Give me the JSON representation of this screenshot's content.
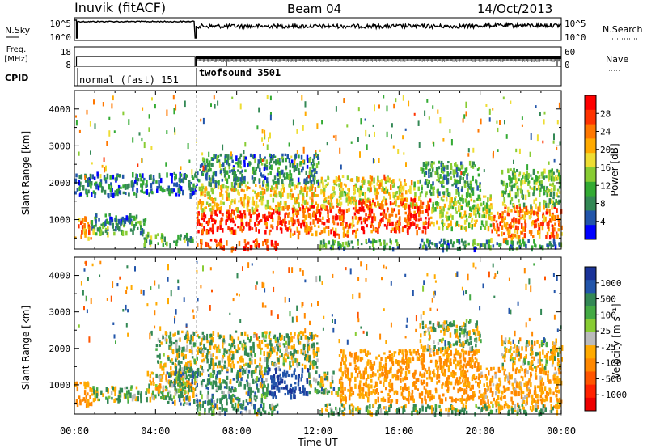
{
  "header": {
    "station": "Inuvik (fitACF)",
    "beam": "Beam 04",
    "date": "14/Oct/2013"
  },
  "left_labels": {
    "nsky": "N.Sky",
    "freq_top": "Freq.",
    "freq_unit": "[MHz]",
    "cpid": "CPID"
  },
  "right_labels": {
    "nsearch": "N.Search",
    "nave": "Nave"
  },
  "strip_axes": {
    "noise_left": [
      "10^5",
      "10^0"
    ],
    "noise_right": [
      "10^5",
      "10^0"
    ],
    "freq_left": [
      "18",
      "8"
    ],
    "nave_right": [
      "60",
      "0"
    ]
  },
  "cpid_modes": [
    {
      "label": "normal (fast) 151"
    },
    {
      "label": "twofsound 3501"
    }
  ],
  "power_colorbar": {
    "label": "Power [dB]",
    "ticks": [
      "28",
      "24",
      "20",
      "16",
      "12",
      "8",
      "4"
    ],
    "colors": [
      "#ff0000",
      "#ff3300",
      "#ff7700",
      "#ffaa00",
      "#eedd33",
      "#88cc33",
      "#33aa33",
      "#338855",
      "#2255aa",
      "#0000ff"
    ]
  },
  "velocity_colorbar": {
    "label": "Velocity [m s⁻¹]",
    "ticks": [
      "1000",
      "500",
      "100",
      "25",
      "-25",
      "-100",
      "-500",
      "-1000"
    ],
    "colors": [
      "#1a3399",
      "#2255aa",
      "#338855",
      "#44aa44",
      "#88cc33",
      "#bbbbbb",
      "#ffaa00",
      "#ff8800",
      "#ff5500",
      "#ff2200",
      "#ee0000"
    ]
  },
  "chart_data": [
    {
      "type": "heatmap",
      "parameter": "power",
      "x_range": [
        "00:00",
        "00:00"
      ],
      "x_ticks": [
        "00:00",
        "04:00",
        "08:00",
        "12:00",
        "16:00",
        "20:00",
        "00:00"
      ],
      "xlabel": "Time UT",
      "ylabel": "Slant Range [km]",
      "y_ticks": [
        1000,
        2000,
        3000,
        4000
      ],
      "ylim": [
        200,
        4500
      ],
      "zlim": [
        0,
        30
      ],
      "cells": [
        {
          "t0": 0.0,
          "t1": 0.8,
          "r0": 500,
          "r1": 1100,
          "v": 22
        },
        {
          "t0": 0.8,
          "t1": 3.6,
          "r0": 650,
          "r1": 1100,
          "v": 10
        },
        {
          "t0": 1.0,
          "t1": 3.2,
          "r0": 950,
          "r1": 1200,
          "v": 6
        },
        {
          "t0": 3.4,
          "t1": 5.8,
          "r0": 350,
          "r1": 650,
          "v": 10
        },
        {
          "t0": 0.0,
          "t1": 6.0,
          "r0": 1700,
          "r1": 2300,
          "v": 5
        },
        {
          "t0": 6.0,
          "t1": 10.5,
          "r0": 700,
          "r1": 1300,
          "v": 27
        },
        {
          "t0": 6.0,
          "t1": 10.0,
          "r0": 250,
          "r1": 500,
          "v": 27
        },
        {
          "t0": 6.0,
          "t1": 12.0,
          "r0": 1300,
          "r1": 2000,
          "v": 18
        },
        {
          "t0": 6.0,
          "t1": 12.0,
          "r0": 2000,
          "r1": 2800,
          "v": 7
        },
        {
          "t0": 10.5,
          "t1": 14.0,
          "r0": 600,
          "r1": 1400,
          "v": 24
        },
        {
          "t0": 12.0,
          "t1": 17.0,
          "r0": 1400,
          "r1": 2200,
          "v": 17
        },
        {
          "t0": 14.0,
          "t1": 17.5,
          "r0": 700,
          "r1": 1600,
          "v": 26
        },
        {
          "t0": 17.5,
          "t1": 20.5,
          "r0": 800,
          "r1": 1700,
          "v": 15
        },
        {
          "t0": 17.0,
          "t1": 20.0,
          "r0": 1700,
          "r1": 2600,
          "v": 9
        },
        {
          "t0": 20.5,
          "t1": 24.0,
          "r0": 500,
          "r1": 1400,
          "v": 23
        },
        {
          "t0": 21.0,
          "t1": 24.0,
          "r0": 1400,
          "r1": 2400,
          "v": 12
        },
        {
          "t0": 12.0,
          "t1": 16.0,
          "r0": 250,
          "r1": 500,
          "v": 9
        },
        {
          "t0": 17.0,
          "t1": 24.0,
          "r0": 250,
          "r1": 500,
          "v": 7
        }
      ]
    },
    {
      "type": "heatmap",
      "parameter": "velocity",
      "x_range": [
        "00:00",
        "00:00"
      ],
      "x_ticks": [
        "00:00",
        "04:00",
        "08:00",
        "12:00",
        "16:00",
        "20:00",
        "00:00"
      ],
      "xlabel": "Time UT",
      "ylabel": "Slant Range [km]",
      "y_ticks": [
        1000,
        2000,
        3000,
        4000
      ],
      "ylim": [
        200,
        4500
      ],
      "zlim": [
        -1000,
        1000
      ],
      "cells": [
        {
          "t0": 0.0,
          "t1": 0.8,
          "r0": 500,
          "r1": 1100,
          "v": -400
        },
        {
          "t0": 0.8,
          "t1": 4.5,
          "r0": 600,
          "r1": 1000,
          "v": 30
        },
        {
          "t0": 3.5,
          "t1": 6.0,
          "r0": 800,
          "r1": 1400,
          "v": -150
        },
        {
          "t0": 4.5,
          "t1": 9.5,
          "r0": 500,
          "r1": 1500,
          "v": 150
        },
        {
          "t0": 4.0,
          "t1": 12.0,
          "r0": 1500,
          "r1": 2500,
          "v": 0
        },
        {
          "t0": 9.5,
          "t1": 11.5,
          "r0": 700,
          "r1": 1500,
          "v": 700
        },
        {
          "t0": 11.5,
          "t1": 13.0,
          "r0": 800,
          "r1": 1400,
          "v": 80
        },
        {
          "t0": 13.0,
          "t1": 20.0,
          "r0": 600,
          "r1": 2000,
          "v": -350
        },
        {
          "t0": 17.0,
          "t1": 20.0,
          "r0": 2000,
          "r1": 2800,
          "v": 0
        },
        {
          "t0": 20.0,
          "t1": 24.0,
          "r0": 400,
          "r1": 1500,
          "v": -250
        },
        {
          "t0": 21.0,
          "t1": 24.0,
          "r0": 1500,
          "r1": 2300,
          "v": -100
        },
        {
          "t0": 6.0,
          "t1": 10.0,
          "r0": 250,
          "r1": 500,
          "v": 150
        },
        {
          "t0": 12.0,
          "t1": 24.0,
          "r0": 250,
          "r1": 500,
          "v": 40
        }
      ]
    }
  ]
}
